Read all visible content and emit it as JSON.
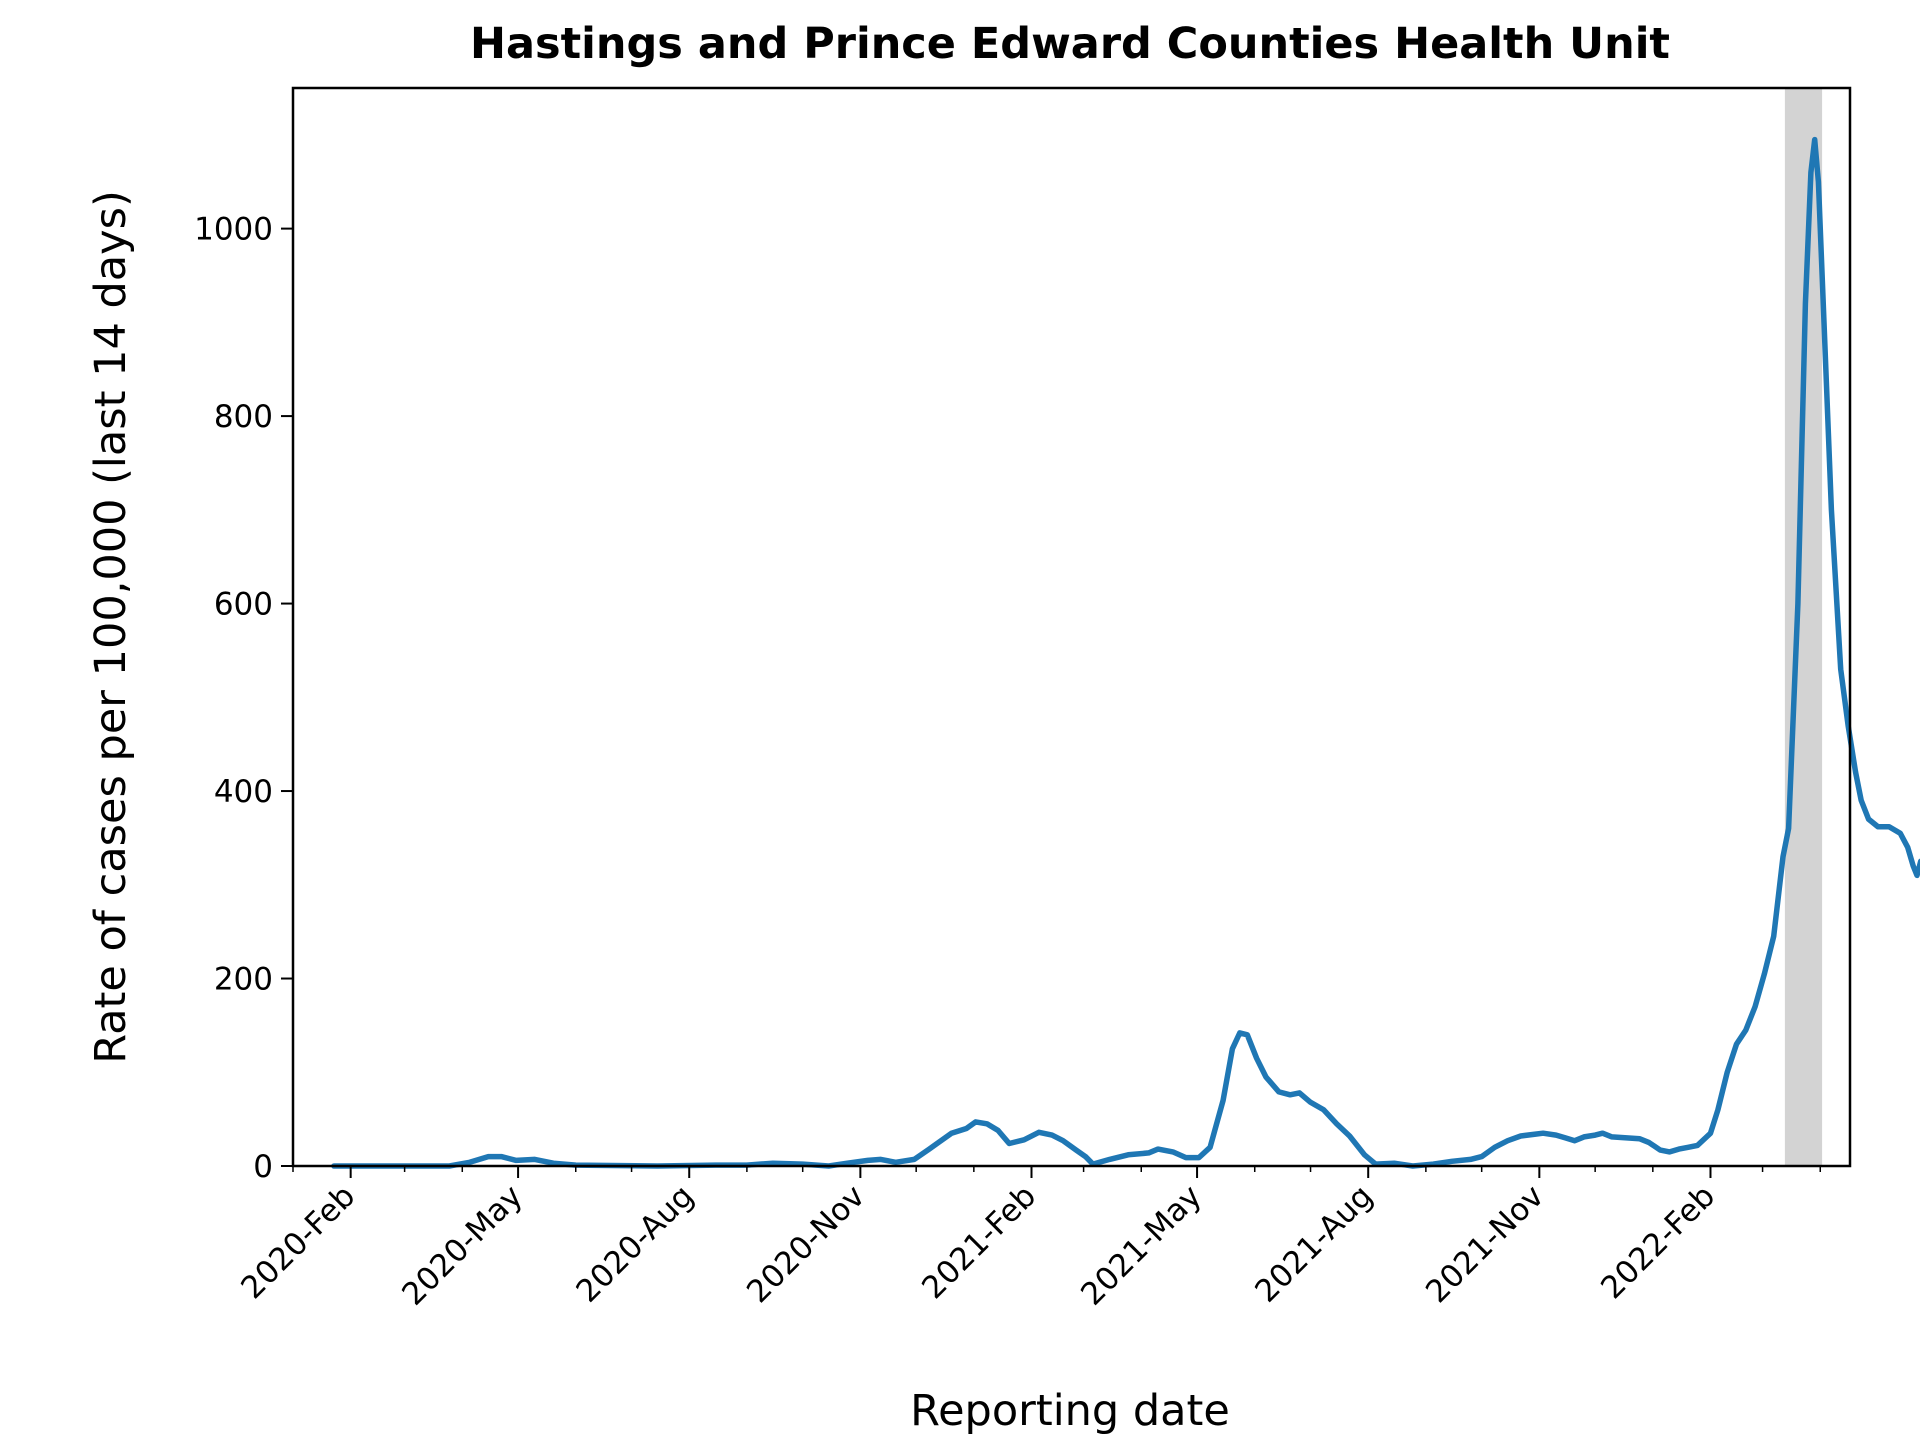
{
  "chart_data": {
    "type": "line",
    "title": "Hastings and Prince Edward Counties Health Unit",
    "xlabel": "Reporting date",
    "ylabel": "Rate of cases per 100,000 (last 14 days)",
    "xlim": [
      "2020-01-01",
      "2022-04-17"
    ],
    "ylim": [
      0,
      1150
    ],
    "x_ticks": [
      {
        "date": "2020-02-01",
        "label": "2020-Feb"
      },
      {
        "date": "2020-05-01",
        "label": "2020-May"
      },
      {
        "date": "2020-08-01",
        "label": "2020-Aug"
      },
      {
        "date": "2020-11-01",
        "label": "2020-Nov"
      },
      {
        "date": "2021-02-01",
        "label": "2021-Feb"
      },
      {
        "date": "2021-05-01",
        "label": "2021-May"
      },
      {
        "date": "2021-08-01",
        "label": "2021-Aug"
      },
      {
        "date": "2021-11-01",
        "label": "2021-Nov"
      },
      {
        "date": "2022-02-01",
        "label": "2022-Feb"
      }
    ],
    "y_ticks": [
      0,
      200,
      400,
      600,
      800,
      1000
    ],
    "grid": false,
    "line_color": "#1f77b4",
    "shaded_region": {
      "start": "2022-03-13",
      "end": "2022-04-02",
      "color": "#d3d3d3"
    },
    "series": [
      {
        "points": [
          [
            "2020-01-23",
            0
          ],
          [
            "2020-03-25",
            0
          ],
          [
            "2020-04-05",
            4
          ],
          [
            "2020-04-15",
            10
          ],
          [
            "2020-04-22",
            10
          ],
          [
            "2020-04-30",
            6
          ],
          [
            "2020-05-10",
            7
          ],
          [
            "2020-05-20",
            3
          ],
          [
            "2020-06-01",
            1
          ],
          [
            "2020-07-15",
            0
          ],
          [
            "2020-08-15",
            1
          ],
          [
            "2020-09-01",
            1
          ],
          [
            "2020-09-15",
            3
          ],
          [
            "2020-10-01",
            2
          ],
          [
            "2020-10-15",
            0
          ],
          [
            "2020-10-25",
            3
          ],
          [
            "2020-11-05",
            6
          ],
          [
            "2020-11-12",
            7
          ],
          [
            "2020-11-20",
            4
          ],
          [
            "2020-11-30",
            7
          ],
          [
            "2020-12-08",
            18
          ],
          [
            "2020-12-20",
            35
          ],
          [
            "2020-12-28",
            40
          ],
          [
            "2021-01-02",
            47
          ],
          [
            "2021-01-08",
            45
          ],
          [
            "2021-01-14",
            38
          ],
          [
            "2021-01-20",
            24
          ],
          [
            "2021-01-28",
            28
          ],
          [
            "2021-02-05",
            36
          ],
          [
            "2021-02-12",
            33
          ],
          [
            "2021-02-18",
            27
          ],
          [
            "2021-02-25",
            17
          ],
          [
            "2021-03-02",
            10
          ],
          [
            "2021-03-06",
            2
          ],
          [
            "2021-03-15",
            7
          ],
          [
            "2021-03-25",
            12
          ],
          [
            "2021-04-05",
            14
          ],
          [
            "2021-04-10",
            18
          ],
          [
            "2021-04-18",
            15
          ],
          [
            "2021-04-25",
            9
          ],
          [
            "2021-05-02",
            9
          ],
          [
            "2021-05-08",
            20
          ],
          [
            "2021-05-15",
            70
          ],
          [
            "2021-05-20",
            125
          ],
          [
            "2021-05-24",
            142
          ],
          [
            "2021-05-28",
            140
          ],
          [
            "2021-06-02",
            115
          ],
          [
            "2021-06-07",
            95
          ],
          [
            "2021-06-14",
            79
          ],
          [
            "2021-06-20",
            76
          ],
          [
            "2021-06-25",
            78
          ],
          [
            "2021-07-01",
            68
          ],
          [
            "2021-07-08",
            60
          ],
          [
            "2021-07-15",
            45
          ],
          [
            "2021-07-22",
            32
          ],
          [
            "2021-07-30",
            12
          ],
          [
            "2021-08-05",
            2
          ],
          [
            "2021-08-15",
            3
          ],
          [
            "2021-08-25",
            0
          ],
          [
            "2021-09-05",
            2
          ],
          [
            "2021-09-15",
            5
          ],
          [
            "2021-09-25",
            7
          ],
          [
            "2021-10-01",
            10
          ],
          [
            "2021-10-08",
            20
          ],
          [
            "2021-10-15",
            27
          ],
          [
            "2021-10-22",
            32
          ],
          [
            "2021-10-30",
            34
          ],
          [
            "2021-11-03",
            35
          ],
          [
            "2021-11-10",
            33
          ],
          [
            "2021-11-15",
            30
          ],
          [
            "2021-11-20",
            27
          ],
          [
            "2021-11-25",
            31
          ],
          [
            "2021-12-01",
            33
          ],
          [
            "2021-12-05",
            35
          ],
          [
            "2021-12-10",
            31
          ],
          [
            "2021-12-18",
            30
          ],
          [
            "2021-12-25",
            29
          ],
          [
            "2021-12-30",
            25
          ],
          [
            "2022-01-05",
            17
          ],
          [
            "2022-01-10",
            15
          ],
          [
            "2022-01-15",
            18
          ],
          [
            "2022-01-20",
            20
          ],
          [
            "2022-01-25",
            22
          ],
          [
            "2022-02-01",
            35
          ],
          [
            "2022-02-05",
            60
          ],
          [
            "2022-02-10",
            100
          ],
          [
            "2022-02-15",
            130
          ],
          [
            "2022-02-20",
            145
          ],
          [
            "2022-02-25",
            170
          ],
          [
            "2022-03-02",
            205
          ],
          [
            "2022-03-07",
            245
          ],
          [
            "2022-03-12",
            330
          ],
          [
            "2022-03-15",
            360
          ],
          [
            "2022-03-20",
            600
          ],
          [
            "2022-03-24",
            920
          ],
          [
            "2022-03-27",
            1060
          ],
          [
            "2022-03-29",
            1095
          ],
          [
            "2022-03-31",
            1050
          ],
          [
            "2022-04-03",
            900
          ],
          [
            "2022-04-07",
            700
          ],
          [
            "2022-04-12",
            530
          ],
          [
            "2022-04-16",
            470
          ],
          [
            "2022-04-20",
            420
          ],
          [
            "2022-04-23",
            390
          ],
          [
            "2022-04-27",
            370
          ],
          [
            "2022-05-02",
            362
          ],
          [
            "2022-05-08",
            362
          ],
          [
            "2022-05-14",
            355
          ],
          [
            "2022-05-18",
            340
          ],
          [
            "2022-05-21",
            320
          ],
          [
            "2022-05-23",
            310
          ],
          [
            "2022-05-25",
            325
          ],
          [
            "2022-05-27",
            323
          ]
        ]
      }
    ]
  }
}
